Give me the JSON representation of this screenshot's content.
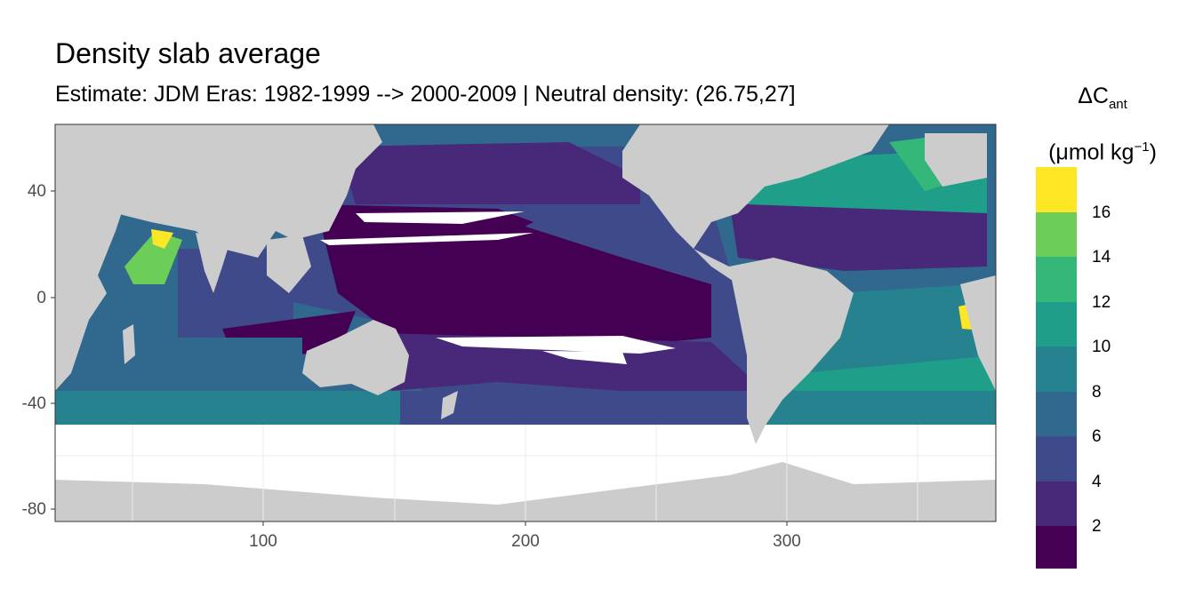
{
  "title": "Density slab average",
  "subtitle": "Estimate: JDM Eras: 1982-1999 --> 2000-2009 | Neutral density: (26.75,27]",
  "legend": {
    "symbol": "ΔC",
    "subscript": "ant",
    "unit_prefix": "(μmol kg",
    "unit_sup": "−1",
    "unit_suffix": ")",
    "ticks": [
      "2",
      "4",
      "6",
      "8",
      "10",
      "12",
      "14",
      "16"
    ],
    "colors": [
      "#440154",
      "#482878",
      "#3E4A89",
      "#31688E",
      "#26828E",
      "#1F9E89",
      "#35B779",
      "#6DCD59",
      "#B4DE2C",
      "#FDE725"
    ]
  },
  "axes": {
    "x_ticks": [
      "100",
      "200",
      "300"
    ],
    "y_ticks": [
      "40",
      "0",
      "-40",
      "-80"
    ],
    "x_range": [
      20,
      380
    ],
    "y_range": [
      -85,
      65
    ]
  },
  "colors": {
    "land": "#CCCCCC",
    "no_data": "#FFFFFF",
    "grid": "#EBEBEB",
    "panel_border": "#333333"
  },
  "chart_data": {
    "type": "heatmap",
    "title": "Density slab average",
    "subtitle": "Estimate: JDM Eras: 1982-1999 --> 2000-2009 | Neutral density: (26.75,27]",
    "xlabel": "",
    "ylabel": "",
    "xlim": [
      20,
      380
    ],
    "ylim": [
      -85,
      65
    ],
    "legend_title": "ΔCant (μmol kg−1)",
    "legend_breaks": [
      2,
      4,
      6,
      8,
      10,
      12,
      14,
      16
    ],
    "legend_placement": "right",
    "grid": true
  }
}
